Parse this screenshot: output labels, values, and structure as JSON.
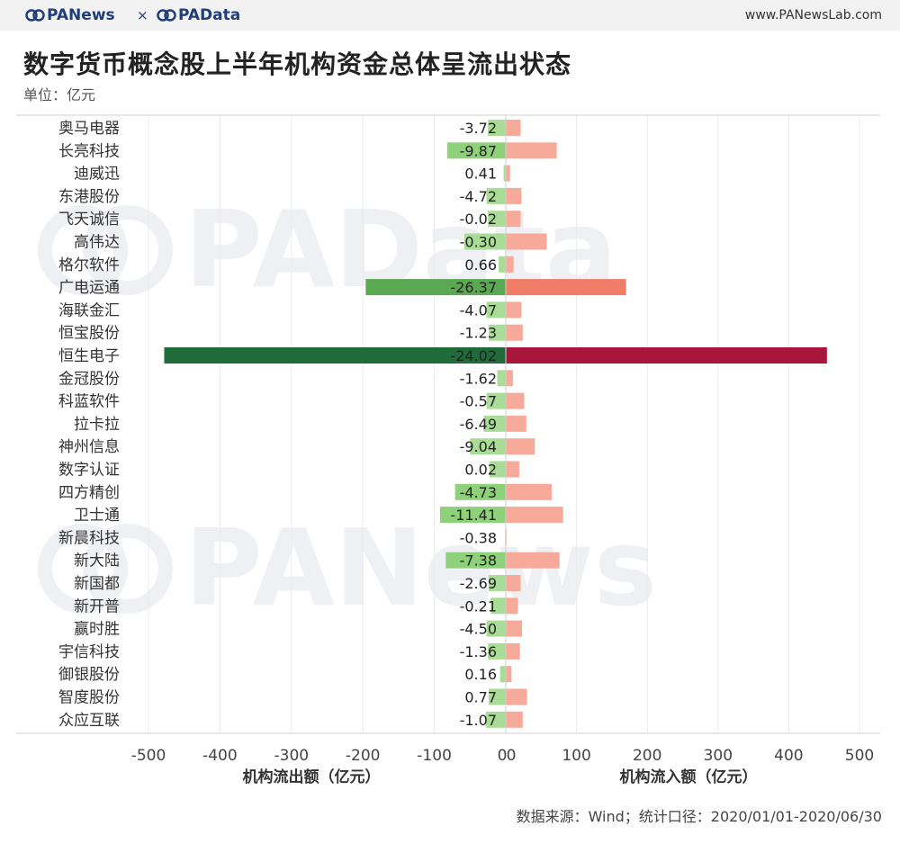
{
  "header": {
    "brand_left": "PANews",
    "separator": "×",
    "brand_right": "PAData",
    "site": "www.PANewsLab.com"
  },
  "title": "数字货币概念股上半年机构资金总体呈流出状态",
  "unit": "单位：亿元",
  "source": "数据来源：Wind；统计口径：2020/01/01-2020/06/30",
  "watermarks": [
    "PAData",
    "PANews"
  ],
  "colors": {
    "outflow_light": "#a9dc96",
    "outflow_dark": "#1f6b3a",
    "inflow_light": "#f8aa9a",
    "inflow_mid": "#f07d68",
    "inflow_dark": "#a8163c",
    "axis": "#d0d0d0",
    "brand": "#1f3d7a"
  },
  "chart_data": {
    "type": "bar",
    "orientation": "horizontal-diverging",
    "categories": [
      "奥马电器",
      "长亮科技",
      "迪威迅",
      "东港股份",
      "飞天诚信",
      "高伟达",
      "格尔软件",
      "广电运通",
      "海联金汇",
      "恒宝股份",
      "恒生电子",
      "金冠股份",
      "科蓝软件",
      "拉卡拉",
      "神州信息",
      "数字认证",
      "四方精创",
      "卫士通",
      "新晨科技",
      "新大陆",
      "新国都",
      "新开普",
      "赢时胜",
      "宇信科技",
      "御银股份",
      "智度股份",
      "众应互联"
    ],
    "series": [
      {
        "name": "机构流出额（亿元）",
        "values": [
          -25,
          -82,
          -3,
          -27,
          -25,
          -58,
          -10,
          -196,
          -27,
          -24,
          -478,
          -12,
          -27,
          -31,
          -50,
          -23,
          -71,
          -92,
          -1,
          -84,
          -24,
          -21,
          -27,
          -25,
          -8,
          -24,
          -28
        ]
      },
      {
        "name": "机构流入额（亿元）",
        "values": [
          21,
          72,
          6,
          22,
          21,
          58,
          11,
          170,
          22,
          24,
          454,
          10,
          26,
          29,
          41,
          19,
          65,
          81,
          1,
          76,
          21,
          17,
          23,
          20,
          8,
          30,
          24
        ]
      }
    ],
    "labels": [
      "-3.72",
      "-9.87",
      "0.41",
      "-4.72",
      "-0.02",
      "-0.30",
      "0.66",
      "-26.37",
      "-4.07",
      "-1.23",
      "-24.02",
      "-1.62",
      "-0.57",
      "-6.49",
      "-9.04",
      "0.02",
      "-4.73",
      "-11.41",
      "-0.38",
      "-7.38",
      "-2.69",
      "-0.21",
      "-4.50",
      "-1.36",
      "0.16",
      "0.77",
      "-1.07"
    ],
    "left_axis": {
      "label": "机构流出额（亿元）",
      "ticks": [
        "-500",
        "-400",
        "-300",
        "-200",
        "-100",
        "0"
      ],
      "range": [
        -500,
        0
      ]
    },
    "right_axis": {
      "label": "机构流入额（亿元）",
      "ticks": [
        "0",
        "100",
        "200",
        "300",
        "400",
        "500"
      ],
      "range": [
        0,
        500
      ]
    },
    "grid": true,
    "legend": "none"
  }
}
